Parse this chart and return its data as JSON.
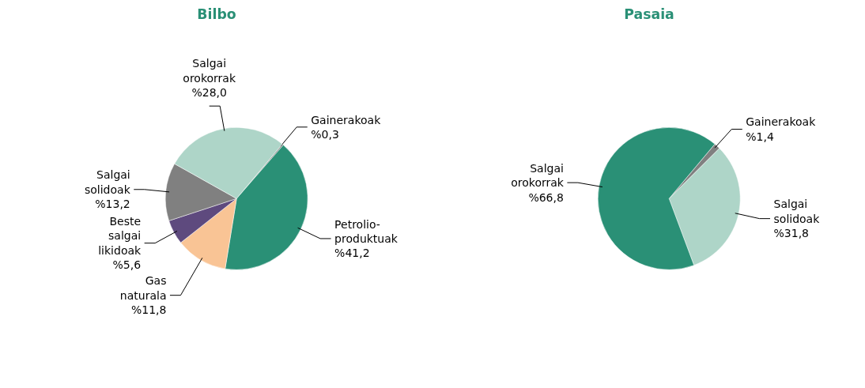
{
  "chart_data": [
    {
      "type": "pie",
      "title": "Bilbo",
      "categories": [
        "Gainerakoak",
        "Petrolio-produktuak",
        "Gas naturala",
        "Beste salgai likidoak",
        "Salgai solidoak",
        "Salgai orokorrak"
      ],
      "values": [
        0.3,
        41.2,
        11.8,
        5.6,
        13.2,
        28.0
      ],
      "colors": [
        "#808080",
        "#2a9076",
        "#f9c495",
        "#5e4a7e",
        "#808080",
        "#aed5c8"
      ],
      "value_labels": [
        "%0,3",
        "%41,2",
        "%11,8",
        "%5,6",
        "%13,2",
        "%28,0"
      ]
    },
    {
      "type": "pie",
      "title": "Pasaia",
      "categories": [
        "Gainerakoak",
        "Salgai solidoak",
        "Salgai orokorrak"
      ],
      "values": [
        1.4,
        31.8,
        66.8
      ],
      "colors": [
        "#808080",
        "#aed5c8",
        "#2a9076"
      ],
      "value_labels": [
        "%1,4",
        "%31,8",
        "%66,8"
      ]
    }
  ]
}
